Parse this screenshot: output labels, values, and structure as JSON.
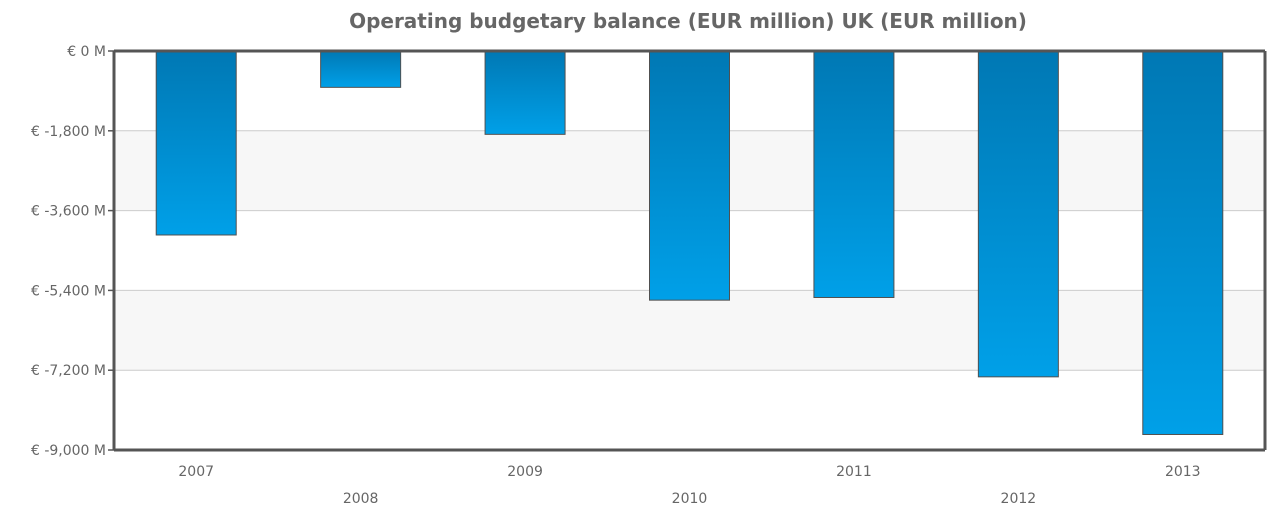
{
  "chart_data": {
    "type": "bar",
    "title": "Operating budgetary balance (EUR million) UK (EUR million)",
    "xlabel": "",
    "ylabel": "",
    "categories": [
      "2007",
      "2008",
      "2009",
      "2010",
      "2011",
      "2012",
      "2013"
    ],
    "series": [
      {
        "values": [
          -4150,
          -820,
          -1880,
          -5620,
          -5560,
          -7350,
          -8650
        ]
      }
    ],
    "yticks": [
      0,
      -1800,
      -3600,
      -5400,
      -7200,
      -9000
    ],
    "ytick_labels": [
      "€ 0 M",
      "€ -1,800 M",
      "€ -3,600 M",
      "€ -5,400 M",
      "€ -7,200 M",
      "€ -9,000 M"
    ],
    "ylim": [
      -9000,
      0
    ],
    "grid": true,
    "legend": "none",
    "colors": {
      "bar_top": "#0078b4",
      "bar_bottom": "#00a0e8",
      "bar_stroke": "#505050",
      "band": "#f7f7f7",
      "axis": "#555555",
      "grid": "#cccccc"
    }
  }
}
